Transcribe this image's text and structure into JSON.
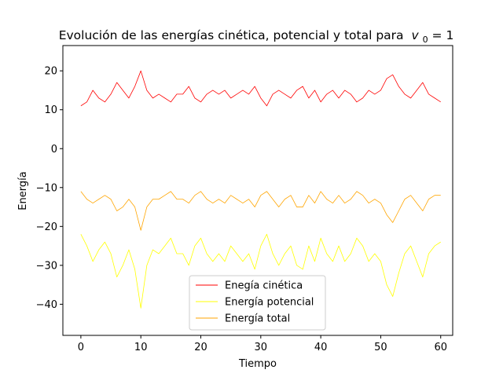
{
  "chart_data": {
    "type": "line",
    "title": "Evolución de las energías cinética, potencial y total para",
    "title_math": "v",
    "title_math_sub": "0",
    "title_math_rest": " = 1",
    "xlabel": "Tiempo",
    "ylabel": "Energía",
    "xlim": [
      -3,
      62
    ],
    "ylim": [
      -48,
      26.5
    ],
    "xticks": [
      0,
      10,
      20,
      30,
      40,
      50,
      60
    ],
    "xtick_labels": [
      "0",
      "10",
      "20",
      "30",
      "40",
      "50",
      "60"
    ],
    "yticks": [
      20,
      10,
      0,
      -10,
      -20,
      -30,
      -40
    ],
    "ytick_labels": [
      "20",
      "10",
      "0",
      "−10",
      "−20",
      "−30",
      "−40"
    ],
    "grid": false,
    "legend_position": "lower-center",
    "series": [
      {
        "name": "Enegía cinética",
        "color": "#ff0000",
        "x": [
          0,
          1,
          2,
          3,
          4,
          5,
          6,
          7,
          8,
          9,
          10,
          11,
          12,
          13,
          14,
          15,
          16,
          17,
          18,
          19,
          20,
          21,
          22,
          23,
          24,
          25,
          26,
          27,
          28,
          29,
          30,
          31,
          32,
          33,
          34,
          35,
          36,
          37,
          38,
          39,
          40,
          41,
          42,
          43,
          44,
          45,
          46,
          47,
          48,
          49,
          50,
          51,
          52,
          53,
          54,
          55,
          56,
          57,
          58,
          59,
          60
        ],
        "values": [
          11,
          12,
          15,
          13,
          12,
          14,
          17,
          15,
          13,
          16,
          20,
          15,
          13,
          14,
          13,
          12,
          14,
          14,
          16,
          13,
          12,
          14,
          15,
          14,
          15,
          13,
          14,
          15,
          14,
          16,
          13,
          11,
          14,
          15,
          14,
          13,
          15,
          16,
          13,
          15,
          12,
          14,
          15,
          13,
          15,
          14,
          12,
          13,
          15,
          14,
          15,
          18,
          19,
          16,
          14,
          13,
          15,
          17,
          14,
          13,
          12
        ]
      },
      {
        "name": "Energía potencial",
        "color": "#ffff00",
        "x": [
          0,
          1,
          2,
          3,
          4,
          5,
          6,
          7,
          8,
          9,
          10,
          11,
          12,
          13,
          14,
          15,
          16,
          17,
          18,
          19,
          20,
          21,
          22,
          23,
          24,
          25,
          26,
          27,
          28,
          29,
          30,
          31,
          32,
          33,
          34,
          35,
          36,
          37,
          38,
          39,
          40,
          41,
          42,
          43,
          44,
          45,
          46,
          47,
          48,
          49,
          50,
          51,
          52,
          53,
          54,
          55,
          56,
          57,
          58,
          59,
          60
        ],
        "values": [
          -22,
          -25,
          -29,
          -26,
          -24,
          -27,
          -33,
          -30,
          -26,
          -31,
          -41,
          -30,
          -26,
          -27,
          -25,
          -23,
          -27,
          -27,
          -30,
          -25,
          -23,
          -27,
          -29,
          -27,
          -29,
          -25,
          -27,
          -29,
          -27,
          -31,
          -25,
          -22,
          -27,
          -30,
          -27,
          -25,
          -30,
          -31,
          -25,
          -29,
          -23,
          -27,
          -29,
          -25,
          -29,
          -27,
          -23,
          -25,
          -29,
          -27,
          -29,
          -35,
          -38,
          -32,
          -27,
          -25,
          -29,
          -33,
          -27,
          -25,
          -24
        ]
      },
      {
        "name": "Energía total",
        "color": "#ffa500",
        "x": [
          0,
          1,
          2,
          3,
          4,
          5,
          6,
          7,
          8,
          9,
          10,
          11,
          12,
          13,
          14,
          15,
          16,
          17,
          18,
          19,
          20,
          21,
          22,
          23,
          24,
          25,
          26,
          27,
          28,
          29,
          30,
          31,
          32,
          33,
          34,
          35,
          36,
          37,
          38,
          39,
          40,
          41,
          42,
          43,
          44,
          45,
          46,
          47,
          48,
          49,
          50,
          51,
          52,
          53,
          54,
          55,
          56,
          57,
          58,
          59,
          60
        ],
        "values": [
          -11,
          -13,
          -14,
          -13,
          -12,
          -13,
          -16,
          -15,
          -13,
          -15,
          -21,
          -15,
          -13,
          -13,
          -12,
          -11,
          -13,
          -13,
          -14,
          -12,
          -11,
          -13,
          -14,
          -13,
          -14,
          -12,
          -13,
          -14,
          -13,
          -15,
          -12,
          -11,
          -13,
          -15,
          -13,
          -12,
          -15,
          -15,
          -12,
          -14,
          -11,
          -13,
          -14,
          -12,
          -14,
          -13,
          -11,
          -12,
          -14,
          -13,
          -14,
          -17,
          -19,
          -16,
          -13,
          -12,
          -14,
          -16,
          -13,
          -12,
          -12
        ]
      }
    ]
  }
}
